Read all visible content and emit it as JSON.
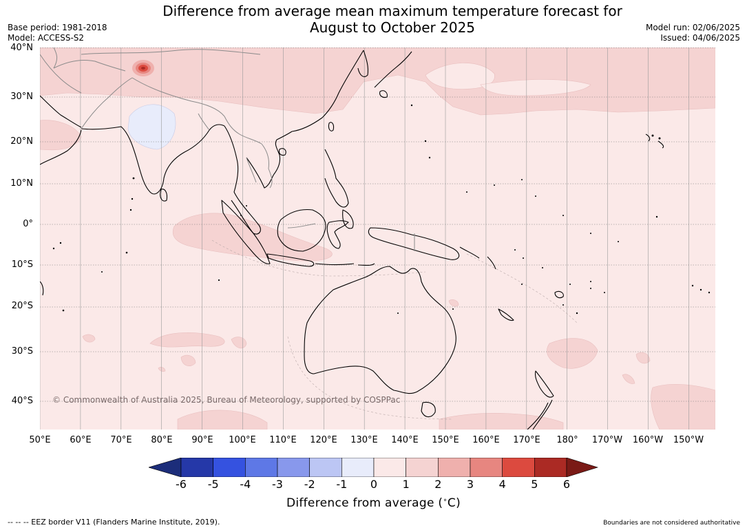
{
  "title": "Difference from average mean maximum temperature forecast for August to October 2025",
  "title_lines": [
    "Difference from average mean maximum temperature forecast for",
    "August to October 2025"
  ],
  "meta_left": [
    "Base period: 1981-2018",
    "Model: ACCESS-S2"
  ],
  "meta_right": [
    "Model run: 02/06/2025",
    "Issued: 04/06/2025"
  ],
  "copyright": "© Commonwealth of Australia 2025, Bureau of Meteorology, supported by COSPPac",
  "lat_ticks": [
    "40°N",
    "30°N",
    "20°N",
    "10°N",
    "0°",
    "10°S",
    "20°S",
    "30°S",
    "40°S"
  ],
  "lon_ticks": [
    "50°E",
    "60°E",
    "70°E",
    "80°E",
    "90°E",
    "100°E",
    "110°E",
    "120°E",
    "130°E",
    "140°E",
    "150°E",
    "160°E",
    "170°E",
    "180°",
    "170°W",
    "160°W",
    "150°W"
  ],
  "colorbar": {
    "title": "Difference from average (°C)",
    "title_parts": [
      "Difference from average (",
      "C)"
    ],
    "labels": [
      "-6",
      "-5",
      "-4",
      "-3",
      "-2",
      "-1",
      "0",
      "1",
      "2",
      "3",
      "4",
      "5",
      "6"
    ],
    "colors": [
      "#2538a8",
      "#3552e0",
      "#5e78e6",
      "#8898ec",
      "#bcc6f4",
      "#e8ecfb",
      "#fbe9e8",
      "#f5d3d2",
      "#efb0ad",
      "#e78680",
      "#dc4a3f",
      "#ab2a24"
    ],
    "under_color": "#1c2d7a",
    "over_color": "#7a1a16"
  },
  "background_color": "#fbe9e8",
  "footer_left": "--  --  -- EEZ border V11 (Flanders Marine Institute, 2019).",
  "footer_right": "Boundaries are not considered authoritative"
}
